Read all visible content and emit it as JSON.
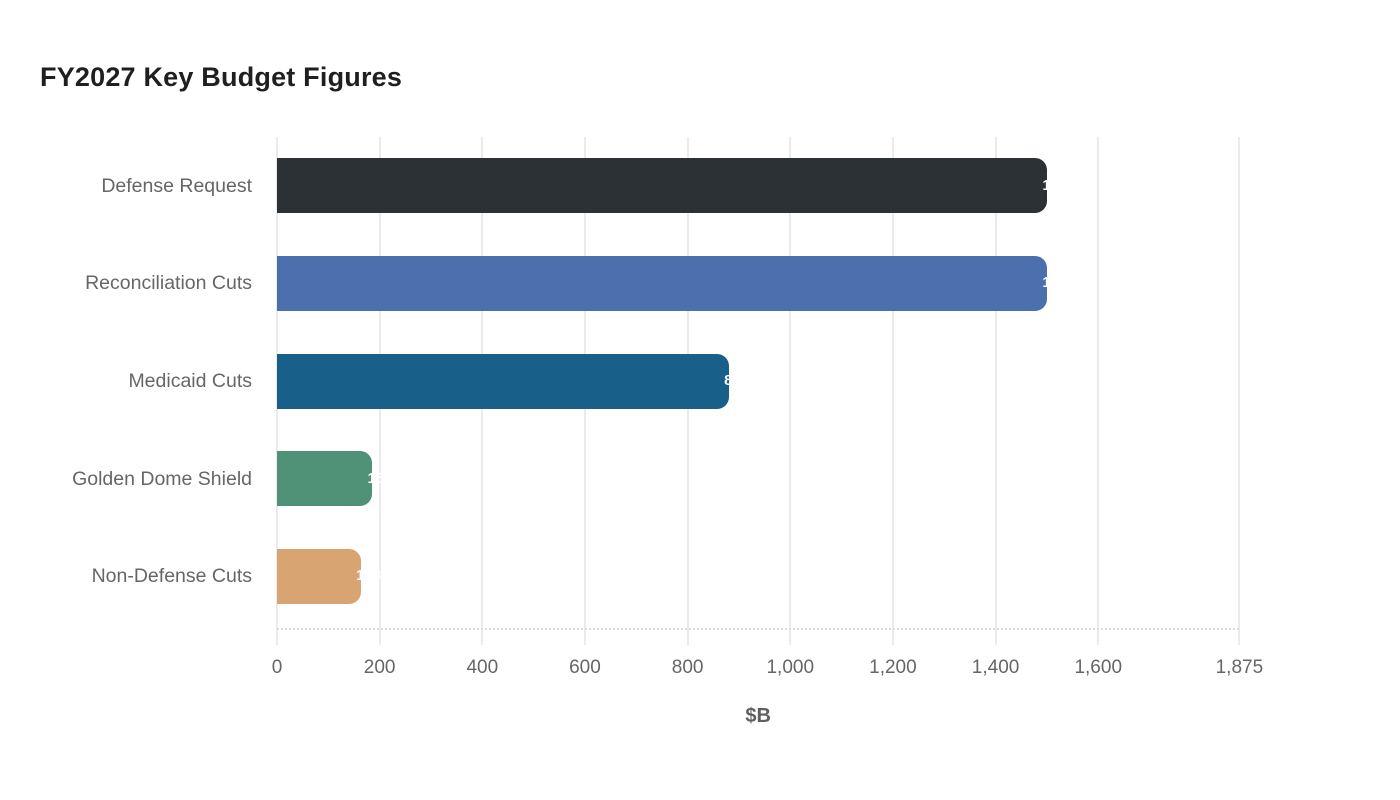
{
  "chart_data": {
    "type": "bar",
    "orientation": "horizontal",
    "title": "FY2027 Key Budget Figures",
    "categories": [
      "Defense Request",
      "Reconciliation Cuts",
      "Medicaid Cuts",
      "Golden Dome Shield",
      "Non-Defense Cuts"
    ],
    "values": [
      1500,
      1500,
      880,
      185,
      163
    ],
    "value_labels": [
      "1,500",
      "1,500",
      "880",
      "185",
      "163"
    ],
    "bar_colors": [
      "#2b3134",
      "#4c70ad",
      "#18608a",
      "#4f9278",
      "#d8a471"
    ],
    "xlabel": "$B",
    "ylabel": "",
    "xlim": [
      0,
      1875
    ],
    "xticks": [
      0,
      200,
      400,
      600,
      800,
      1000,
      1200,
      1400,
      1600,
      1875
    ],
    "xtick_labels": [
      "0",
      "200",
      "400",
      "600",
      "800",
      "1,000",
      "1,200",
      "1,400",
      "1,600",
      "1,875"
    ],
    "grid": true,
    "legend": "none",
    "background": "#ffffff"
  },
  "colors": {
    "title_text": "#1f1f1f",
    "axis_text": "#666666",
    "category_text": "#666666",
    "gridline": "#ebebeb",
    "value_label_text": "#ffffff"
  }
}
